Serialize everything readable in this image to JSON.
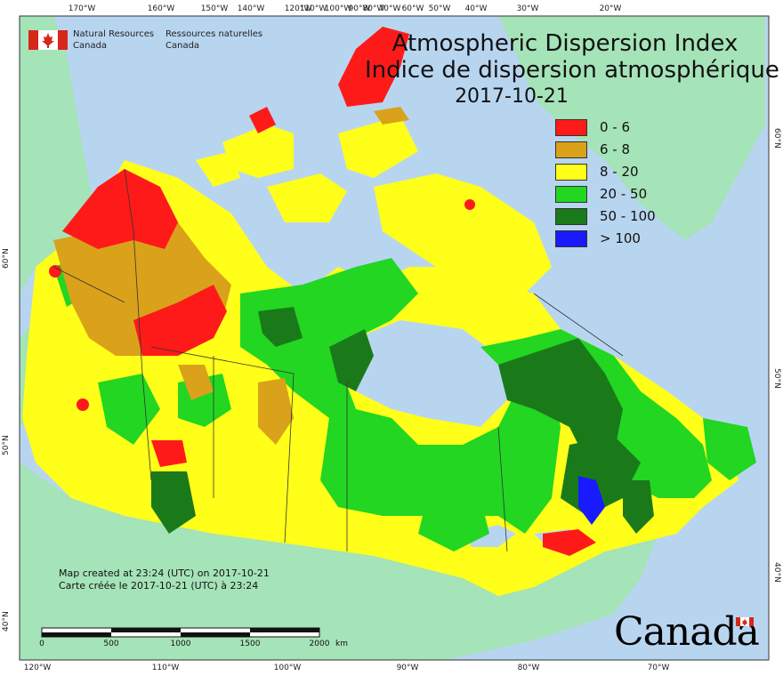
{
  "title": {
    "en": "Atmospheric Dispersion Index",
    "fr": "Indice de dispersion atmosphérique",
    "date": "2017-10-21"
  },
  "agency": {
    "en_1": "Natural Resources",
    "en_2": "Canada",
    "fr_1": "Ressources naturelles",
    "fr_2": "Canada"
  },
  "legend": [
    {
      "label": "0 - 6",
      "color": "#ff1a1a"
    },
    {
      "label": "6 - 8",
      "color": "#d9a21a"
    },
    {
      "label": "8 - 20",
      "color": "#ffff1a"
    },
    {
      "label": "20 - 50",
      "color": "#22d622"
    },
    {
      "label": "50 - 100",
      "color": "#1a7a1a"
    },
    {
      "label": "> 100",
      "color": "#1a1aff"
    }
  ],
  "graticule": {
    "top": [
      "170°W",
      "160°W",
      "150°W",
      "140°W",
      "120°W",
      "110°W",
      "100°W",
      "90°W",
      "80°W",
      "70°W",
      "60°W",
      "50°W",
      "40°W",
      "30°W",
      "20°W"
    ],
    "bottom": [
      "120°W",
      "110°W",
      "100°W",
      "90°W",
      "80°W",
      "70°W"
    ],
    "left": [
      "60°N",
      "50°N",
      "40°N"
    ],
    "right": [
      "60°N",
      "50°N",
      "40°N"
    ]
  },
  "stamp": {
    "en": "Map created at 23:24 (UTC) on 2017-10-21",
    "fr": "Carte créée le 2017-10-21 (UTC) à 23:24"
  },
  "scale": {
    "labels": [
      "0",
      "500",
      "1000",
      "1500",
      "2000"
    ],
    "unit": "km"
  },
  "wordmark": "Canada",
  "colors": {
    "ocean": "#b8d5f0",
    "land_other": "#a5e3b8",
    "frame": "#333333"
  }
}
